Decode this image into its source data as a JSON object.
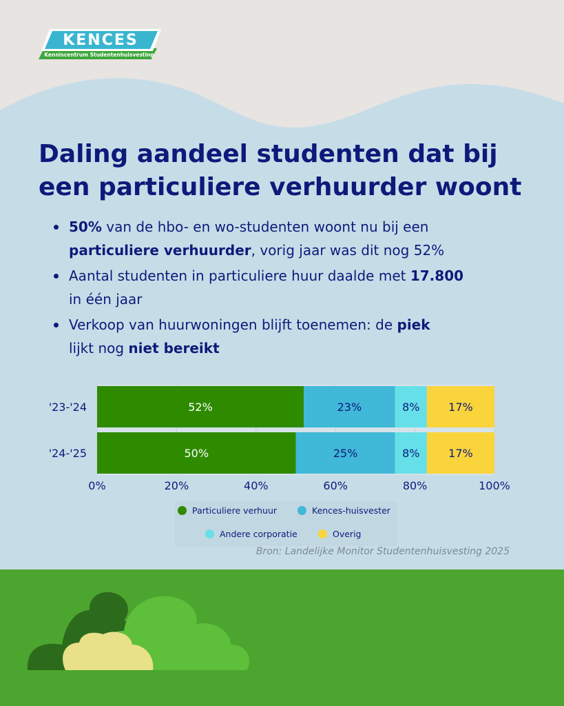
{
  "logo": {
    "name": "KENCES",
    "subtitle": "Kenniscentrum Studentenhuisvesting"
  },
  "title_line1": "Daling aandeel studenten dat bij",
  "title_line2": "een particuliere verhuurder woont",
  "bullets": [
    {
      "line1": [
        {
          "text": "50%",
          "bold": true
        },
        {
          "text": " van de hbo- en wo-studenten woont nu bij een",
          "bold": false
        }
      ],
      "line2": [
        {
          "text": "particuliere verhuurder",
          "bold": true
        },
        {
          "text": ", vorig jaar was dit nog 52%",
          "bold": false
        }
      ]
    },
    {
      "line1": [
        {
          "text": "Aantal studenten in particuliere huur daalde met ",
          "bold": false
        },
        {
          "text": "17.800",
          "bold": true
        }
      ],
      "line2": [
        {
          "text": "in één jaar",
          "bold": false
        }
      ]
    },
    {
      "line1": [
        {
          "text": "Verkoop van huurwoningen blijft toenemen: de ",
          "bold": false
        },
        {
          "text": "piek",
          "bold": true
        }
      ],
      "line2": [
        {
          "text": "lijkt nog ",
          "bold": false
        },
        {
          "text": "niet bereikt",
          "bold": true
        }
      ]
    }
  ],
  "colors": {
    "particuliere": "#2e8b00",
    "kences": "#40b8d8",
    "andere": "#66e0e8",
    "overig": "#f9d43b",
    "navy": "#0d1a7a",
    "sky": "#c6dde8",
    "grass": "#4ca52f"
  },
  "chart_data": {
    "type": "bar",
    "orientation": "horizontal",
    "stacked": true,
    "categories": [
      "'23-'24",
      "'24-'25"
    ],
    "series": [
      {
        "name": "Particuliere verhuur",
        "values": [
          52,
          50
        ],
        "labels": [
          "52%",
          "50%"
        ]
      },
      {
        "name": "Kences-huisvester",
        "values": [
          23,
          25
        ],
        "labels": [
          "23%",
          "25%"
        ]
      },
      {
        "name": "Andere corporatie",
        "values": [
          8,
          8
        ],
        "labels": [
          "8%",
          "8%"
        ]
      },
      {
        "name": "Overig",
        "values": [
          17,
          17
        ],
        "labels": [
          "17%",
          "17%"
        ]
      }
    ],
    "xlim": [
      0,
      100
    ],
    "xticks": [
      "0%",
      "20%",
      "40%",
      "60%",
      "80%",
      "100%"
    ],
    "legend_position": "bottom",
    "grid": true
  },
  "legend": [
    "Particuliere verhuur",
    "Kences-huisvester",
    "Andere corporatie",
    "Overig"
  ],
  "source": "Bron: Landelijke Monitor Studentenhuisvesting 2025"
}
